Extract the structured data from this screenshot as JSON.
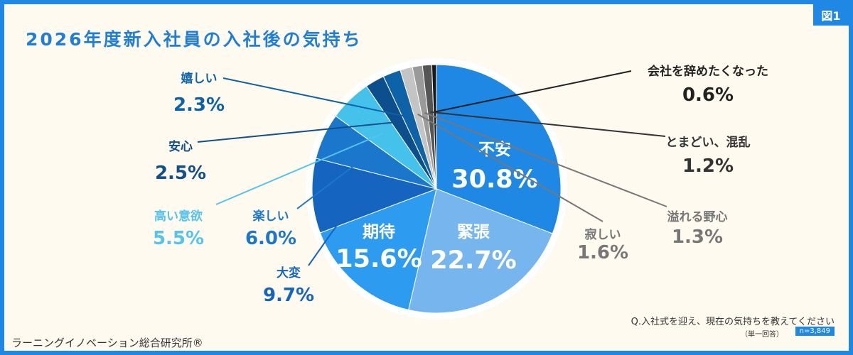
{
  "figure_tag": "図1",
  "question": "Q.入社式を迎え、現在の気持ちを教えてください",
  "answer_note": "（単一回答）",
  "sample_size": "n=3,849",
  "source": "ラーニングイノベーション総合研究所®",
  "colors": {
    "brand": "#1f88e5",
    "background": "#fffaf0"
  },
  "chart_data": {
    "type": "pie",
    "title": "2026年度新入社員の入社後の気持ち",
    "start": "12 o'clock, clockwise",
    "slices": [
      {
        "label": "不安",
        "value": 30.8,
        "value_label": "30.8%",
        "color": "#1f88e5",
        "label_style": "inside"
      },
      {
        "label": "緊張",
        "value": 22.7,
        "value_label": "22.7%",
        "color": "#76b5ed",
        "label_style": "inside"
      },
      {
        "label": "期待",
        "value": 15.6,
        "value_label": "15.6%",
        "color": "#2d9bf0",
        "label_style": "inside"
      },
      {
        "label": "大変",
        "value": 9.7,
        "value_label": "9.7%",
        "color": "#1565c0",
        "label_style": "outside",
        "text_color": "#1565c0"
      },
      {
        "label": "楽しい",
        "value": 6.0,
        "value_label": "6.0%",
        "color": "#1a77cc",
        "label_style": "outside",
        "text_color": "#1a77cc"
      },
      {
        "label": "高い意欲",
        "value": 5.5,
        "value_label": "5.5%",
        "color": "#45c2ec",
        "label_style": "outside",
        "text_color": "#55c3ee"
      },
      {
        "label": "安心",
        "value": 2.5,
        "value_label": "2.5%",
        "color": "#0d4f8c",
        "label_style": "outside",
        "text_color": "#104f8c"
      },
      {
        "label": "嬉しい",
        "value": 2.3,
        "value_label": "2.3%",
        "color": "#0e63a8",
        "label_style": "outside",
        "text_color": "#0e63a8"
      },
      {
        "label": "寂しい",
        "value": 1.6,
        "value_label": "1.6%",
        "color": "#c4c4c4",
        "label_style": "outside",
        "text_color": "#777777"
      },
      {
        "label": "溢れる野心",
        "value": 1.3,
        "value_label": "1.3%",
        "color": "#9a9a9a",
        "label_style": "outside",
        "text_color": "#777777"
      },
      {
        "label": "とまどい、混乱",
        "value": 1.2,
        "value_label": "1.2%",
        "color": "#555555",
        "label_style": "outside",
        "text_color": "#333333"
      },
      {
        "label": "会社を辞めたくなった",
        "value": 0.6,
        "value_label": "0.6%",
        "color": "#1a1a1a",
        "label_style": "outside",
        "text_color": "#222222"
      }
    ]
  }
}
